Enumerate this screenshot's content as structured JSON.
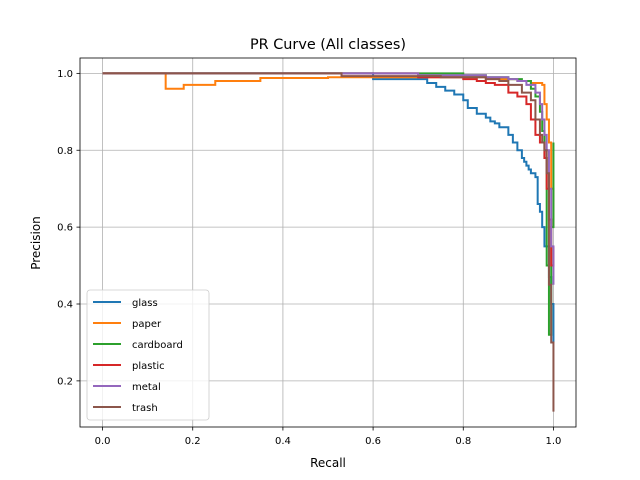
{
  "chart_data": {
    "type": "line",
    "title": "PR Curve (All classes)",
    "xlabel": "Recall",
    "ylabel": "Precision",
    "xlim": [
      -0.05,
      1.05
    ],
    "ylim": [
      0.08,
      1.04
    ],
    "xticks": [
      0.0,
      0.2,
      0.4,
      0.6,
      0.8,
      1.0
    ],
    "xtick_labels": [
      "0.0",
      "0.2",
      "0.4",
      "0.6",
      "0.8",
      "1.0"
    ],
    "yticks": [
      0.2,
      0.4,
      0.6,
      0.8,
      1.0
    ],
    "ytick_labels": [
      "0.2",
      "0.4",
      "0.6",
      "0.8",
      "1.0"
    ],
    "grid": true,
    "legend_position": "lower-left",
    "series": [
      {
        "name": "glass",
        "color": "#1f77b4",
        "x": [
          0.0,
          0.6,
          0.6,
          0.7,
          0.72,
          0.74,
          0.76,
          0.78,
          0.8,
          0.81,
          0.83,
          0.85,
          0.86,
          0.87,
          0.88,
          0.9,
          0.91,
          0.92,
          0.93,
          0.935,
          0.94,
          0.945,
          0.95,
          0.96,
          0.965,
          0.97,
          0.975,
          0.98,
          0.99,
          0.995,
          1.0
        ],
        "y": [
          1.0,
          1.0,
          0.985,
          0.985,
          0.975,
          0.965,
          0.955,
          0.945,
          0.93,
          0.91,
          0.895,
          0.885,
          0.875,
          0.87,
          0.86,
          0.84,
          0.82,
          0.8,
          0.78,
          0.77,
          0.76,
          0.75,
          0.74,
          0.73,
          0.66,
          0.64,
          0.6,
          0.55,
          0.47,
          0.4,
          0.3
        ]
      },
      {
        "name": "paper",
        "color": "#ff7f0e",
        "x": [
          0.0,
          0.14,
          0.14,
          0.18,
          0.25,
          0.35,
          0.5,
          0.7,
          0.85,
          0.92,
          0.95,
          0.96,
          0.97,
          0.975,
          0.98,
          0.985,
          0.99,
          0.995,
          1.0
        ],
        "y": [
          1.0,
          1.0,
          0.96,
          0.97,
          0.98,
          0.988,
          0.99,
          0.99,
          0.985,
          0.98,
          0.975,
          0.975,
          0.975,
          0.97,
          0.92,
          0.88,
          0.82,
          0.7,
          0.6
        ]
      },
      {
        "name": "cardboard",
        "color": "#2ca02c",
        "x": [
          0.0,
          0.6,
          0.75,
          0.8,
          0.85,
          0.9,
          0.93,
          0.95,
          0.96,
          0.97,
          0.975,
          0.98,
          0.985,
          0.99,
          0.995,
          1.0
        ],
        "y": [
          1.0,
          1.0,
          1.0,
          0.995,
          0.99,
          0.985,
          0.98,
          0.96,
          0.94,
          0.9,
          0.85,
          0.78,
          0.5,
          0.32,
          0.6,
          0.82
        ]
      },
      {
        "name": "plastic",
        "color": "#d62728",
        "x": [
          0.0,
          0.55,
          0.7,
          0.8,
          0.83,
          0.85,
          0.87,
          0.9,
          0.92,
          0.94,
          0.95,
          0.96,
          0.97,
          0.98,
          0.985,
          0.99,
          0.995,
          1.0
        ],
        "y": [
          1.0,
          1.0,
          0.99,
          0.985,
          0.98,
          0.975,
          0.97,
          0.95,
          0.94,
          0.92,
          0.88,
          0.84,
          0.82,
          0.78,
          0.7,
          0.62,
          0.5,
          0.55
        ]
      },
      {
        "name": "metal",
        "color": "#9467bd",
        "x": [
          0.0,
          0.5,
          0.7,
          0.85,
          0.9,
          0.92,
          0.94,
          0.96,
          0.97,
          0.975,
          0.98,
          0.985,
          0.99,
          0.995,
          1.0
        ],
        "y": [
          1.0,
          1.0,
          0.995,
          0.99,
          0.985,
          0.98,
          0.97,
          0.95,
          0.92,
          0.88,
          0.84,
          0.8,
          0.7,
          0.55,
          0.45
        ]
      },
      {
        "name": "trash",
        "color": "#8c564b",
        "x": [
          0.0,
          0.53,
          0.6,
          0.75,
          0.85,
          0.88,
          0.9,
          0.93,
          0.95,
          0.96,
          0.97,
          0.975,
          0.98,
          0.985,
          0.99,
          0.995,
          1.0
        ],
        "y": [
          1.0,
          0.993,
          0.993,
          0.99,
          0.985,
          0.98,
          0.97,
          0.95,
          0.93,
          0.88,
          0.84,
          0.82,
          0.8,
          0.74,
          0.45,
          0.3,
          0.12
        ]
      }
    ]
  }
}
